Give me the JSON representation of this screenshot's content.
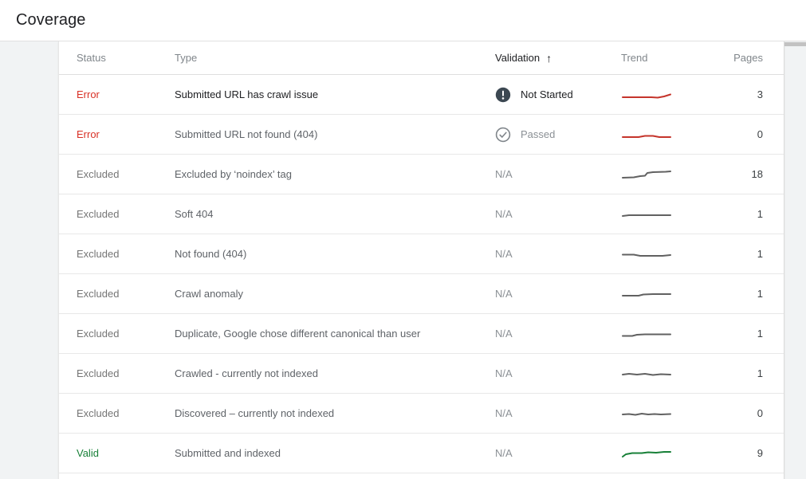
{
  "page": {
    "title": "Coverage"
  },
  "colors": {
    "error": "#d93025",
    "excluded": "#757575",
    "valid": "#188038",
    "trend_red": "#c5342b",
    "trend_gray": "#616161",
    "trend_green": "#188038",
    "validation_badge_dark": "#3c4852"
  },
  "table": {
    "columns": [
      {
        "key": "status",
        "label": "Status"
      },
      {
        "key": "type",
        "label": "Type"
      },
      {
        "key": "validation",
        "label": "Validation",
        "sorted": true,
        "sort_arrow": "↑"
      },
      {
        "key": "trend",
        "label": "Trend"
      },
      {
        "key": "pages",
        "label": "Pages"
      }
    ],
    "rows": [
      {
        "status": "Error",
        "status_color": "#d93025",
        "emphasis": true,
        "type": "Submitted URL has crawl issue",
        "validation": {
          "state": "Not Started",
          "icon": "error-filled-icon",
          "emphasis": true
        },
        "trend": {
          "color": "#c5342b",
          "points": [
            [
              2,
              12
            ],
            [
              38,
              12
            ],
            [
              46,
              12.5
            ],
            [
              54,
              11
            ],
            [
              62,
              8.5
            ]
          ]
        },
        "pages": "3"
      },
      {
        "status": "Error",
        "status_color": "#d93025",
        "emphasis": false,
        "type": "Submitted URL not found (404)",
        "validation": {
          "state": "Passed",
          "icon": "check-circle-icon",
          "emphasis": false
        },
        "trend": {
          "color": "#c5342b",
          "points": [
            [
              2,
              12
            ],
            [
              22,
              12
            ],
            [
              30,
              10.5
            ],
            [
              40,
              10.5
            ],
            [
              48,
              12
            ],
            [
              62,
              12
            ]
          ]
        },
        "pages": "0"
      },
      {
        "status": "Excluded",
        "status_color": "#757575",
        "emphasis": false,
        "type": "Excluded by ‘noindex’ tag",
        "validation": {
          "state": "N/A",
          "icon": "none",
          "emphasis": false
        },
        "trend": {
          "color": "#616161",
          "points": [
            [
              2,
              13
            ],
            [
              16,
              12.5
            ],
            [
              24,
              11
            ],
            [
              30,
              10.5
            ],
            [
              33,
              7
            ],
            [
              40,
              6
            ],
            [
              56,
              5.5
            ],
            [
              62,
              5
            ]
          ]
        },
        "pages": "18"
      },
      {
        "status": "Excluded",
        "status_color": "#757575",
        "emphasis": false,
        "type": "Soft 404",
        "validation": {
          "state": "N/A",
          "icon": "none",
          "emphasis": false
        },
        "trend": {
          "color": "#616161",
          "points": [
            [
              2,
              11
            ],
            [
              10,
              10
            ],
            [
              62,
              10
            ]
          ]
        },
        "pages": "1"
      },
      {
        "status": "Excluded",
        "status_color": "#757575",
        "emphasis": false,
        "type": "Not found (404)",
        "validation": {
          "state": "N/A",
          "icon": "none",
          "emphasis": false
        },
        "trend": {
          "color": "#616161",
          "points": [
            [
              2,
              9.5
            ],
            [
              16,
              9.5
            ],
            [
              24,
              11
            ],
            [
              36,
              11
            ],
            [
              52,
              11
            ],
            [
              62,
              10
            ]
          ]
        },
        "pages": "1"
      },
      {
        "status": "Excluded",
        "status_color": "#757575",
        "emphasis": false,
        "type": "Crawl anomaly",
        "validation": {
          "state": "N/A",
          "icon": "none",
          "emphasis": false
        },
        "trend": {
          "color": "#616161",
          "points": [
            [
              2,
              11
            ],
            [
              22,
              11
            ],
            [
              28,
              9.5
            ],
            [
              40,
              9
            ],
            [
              62,
              9
            ]
          ]
        },
        "pages": "1"
      },
      {
        "status": "Excluded",
        "status_color": "#757575",
        "emphasis": false,
        "type": "Duplicate, Google chose different canonical than user",
        "validation": {
          "state": "N/A",
          "icon": "none",
          "emphasis": false
        },
        "trend": {
          "color": "#616161",
          "points": [
            [
              2,
              11.5
            ],
            [
              14,
              11.5
            ],
            [
              20,
              10
            ],
            [
              30,
              9.5
            ],
            [
              62,
              9.5
            ]
          ]
        },
        "pages": "1"
      },
      {
        "status": "Excluded",
        "status_color": "#757575",
        "emphasis": false,
        "type": "Crawled - currently not indexed",
        "validation": {
          "state": "N/A",
          "icon": "none",
          "emphasis": false
        },
        "trend": {
          "color": "#616161",
          "points": [
            [
              2,
              10
            ],
            [
              10,
              9
            ],
            [
              20,
              10
            ],
            [
              30,
              9
            ],
            [
              40,
              10.5
            ],
            [
              50,
              9.5
            ],
            [
              62,
              10
            ]
          ]
        },
        "pages": "1"
      },
      {
        "status": "Excluded",
        "status_color": "#757575",
        "emphasis": false,
        "type": "Discovered – currently not indexed",
        "validation": {
          "state": "N/A",
          "icon": "none",
          "emphasis": false
        },
        "trend": {
          "color": "#616161",
          "points": [
            [
              2,
              10
            ],
            [
              10,
              9.5
            ],
            [
              18,
              10.5
            ],
            [
              26,
              9
            ],
            [
              34,
              10
            ],
            [
              42,
              9.5
            ],
            [
              50,
              10
            ],
            [
              62,
              9.5
            ]
          ]
        },
        "pages": "0"
      },
      {
        "status": "Valid",
        "status_color": "#188038",
        "emphasis": false,
        "type": "Submitted and indexed",
        "validation": {
          "state": "N/A",
          "icon": "none",
          "emphasis": false
        },
        "trend": {
          "color": "#188038",
          "points": [
            [
              2,
              13
            ],
            [
              6,
              10
            ],
            [
              14,
              8.5
            ],
            [
              26,
              8.5
            ],
            [
              34,
              7.5
            ],
            [
              44,
              8
            ],
            [
              54,
              7
            ],
            [
              62,
              7
            ]
          ]
        },
        "pages": "9"
      }
    ]
  }
}
